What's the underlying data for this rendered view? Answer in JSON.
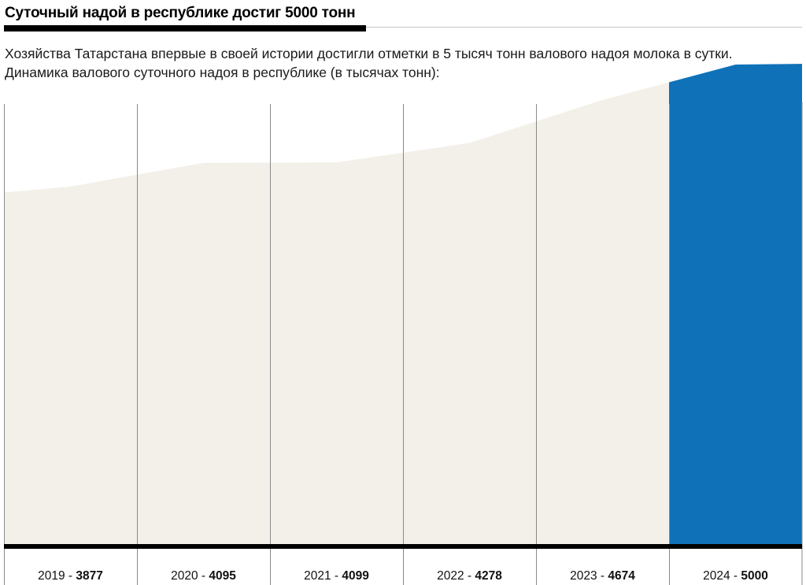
{
  "header": {
    "title": "Суточный надой в республике достиг 5000 тонн"
  },
  "lede": {
    "line1": "Хозяйства Татарстана впервые в своей истории достигли отметки в 5 тысяч тонн валового надоя молока в сутки.",
    "line2": "Динамика валового суточного надоя в республике (в тысячах тонн):"
  },
  "colors": {
    "area": "#f3f0e9",
    "highlight": "#0f71b8",
    "baseline": "#000000",
    "gridline": "#8a8a8a"
  },
  "chart_data": {
    "type": "area",
    "categories": [
      "2019",
      "2020",
      "2021",
      "2022",
      "2023",
      "2024"
    ],
    "values": [
      3877,
      4095,
      4099,
      4278,
      4674,
      5000
    ],
    "highlight_category": "2024",
    "label_separator": " - ",
    "grid": true
  }
}
